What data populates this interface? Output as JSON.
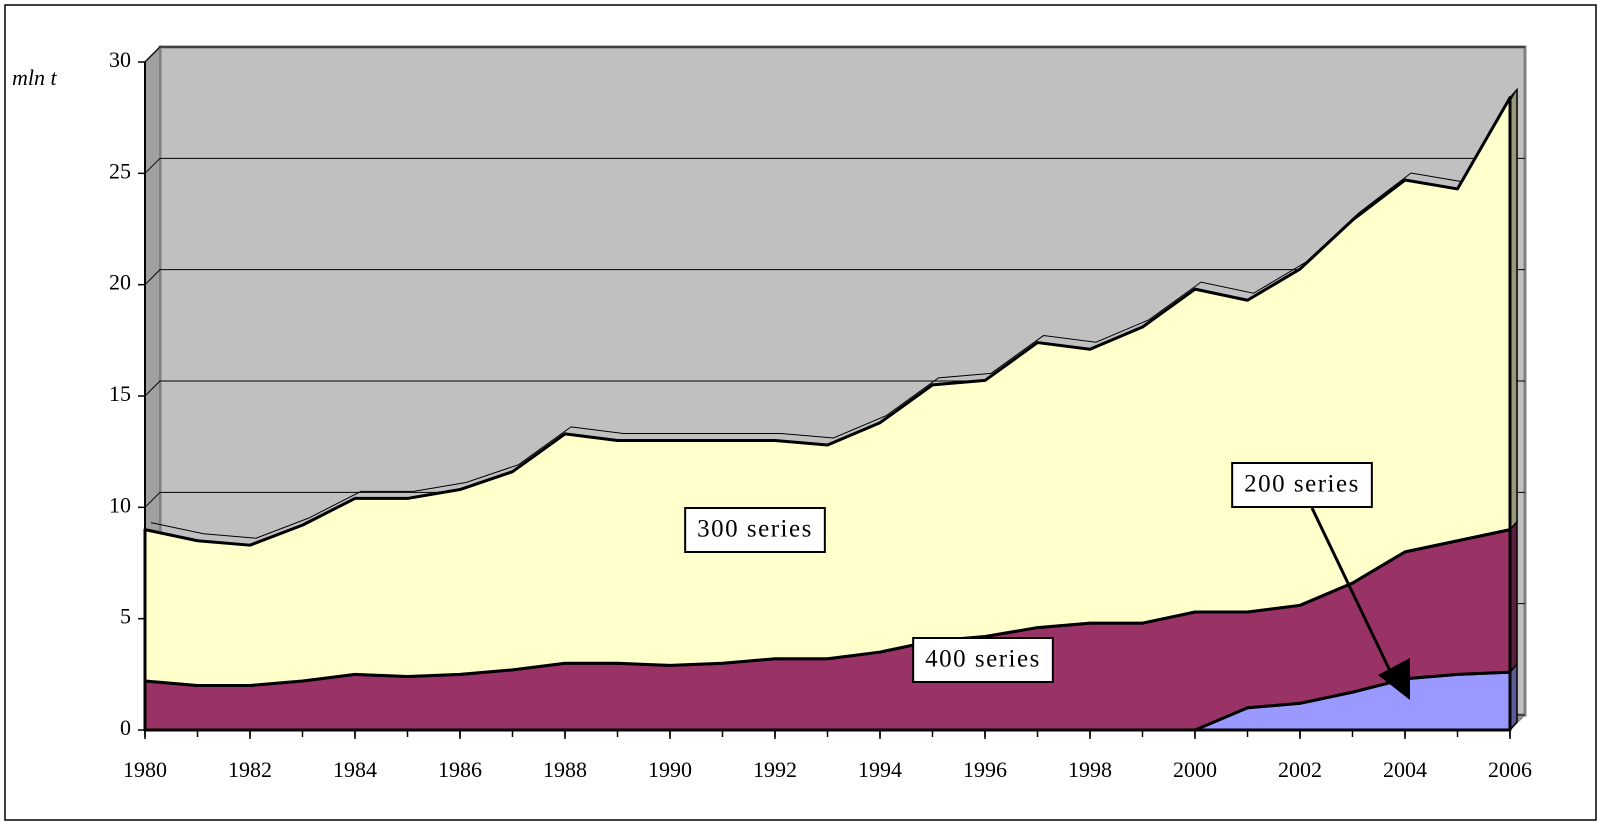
{
  "chart_data": {
    "type": "stacked_area",
    "y_axis_label": "mln t",
    "x": [
      1980,
      1981,
      1982,
      1983,
      1984,
      1985,
      1986,
      1987,
      1988,
      1989,
      1990,
      1991,
      1992,
      1993,
      1994,
      1995,
      1996,
      1997,
      1998,
      1999,
      2000,
      2001,
      2002,
      2003,
      2004,
      2005,
      2006
    ],
    "series": [
      {
        "name": "200 series",
        "color": "#9999ff",
        "values": [
          0,
          0,
          0,
          0,
          0,
          0,
          0,
          0,
          0,
          0,
          0,
          0,
          0,
          0,
          0,
          0,
          0,
          0,
          0,
          0,
          0,
          1.0,
          1.2,
          1.7,
          2.3,
          2.5,
          2.6
        ]
      },
      {
        "name": "400 series",
        "color": "#993366",
        "values": [
          2.2,
          2.0,
          2.0,
          2.2,
          2.5,
          2.4,
          2.5,
          2.7,
          3.0,
          3.0,
          2.9,
          3.0,
          3.2,
          3.2,
          3.5,
          4.0,
          4.2,
          4.6,
          4.8,
          4.8,
          5.3,
          4.3,
          4.4,
          4.9,
          5.7,
          6.0,
          6.4
        ]
      },
      {
        "name": "300 series",
        "color": "#ffffcc",
        "values": [
          6.8,
          6.5,
          6.3,
          7.0,
          7.9,
          8.0,
          8.3,
          8.9,
          10.3,
          10.0,
          10.1,
          10.0,
          9.8,
          9.6,
          10.3,
          11.5,
          11.5,
          12.8,
          12.3,
          13.3,
          14.5,
          14.0,
          15.1,
          16.3,
          16.7,
          15.8,
          19.4
        ]
      }
    ],
    "xlim": [
      1980,
      2006
    ],
    "xticks": [
      1980,
      1982,
      1984,
      1986,
      1988,
      1990,
      1992,
      1994,
      1996,
      1998,
      2000,
      2002,
      2004,
      2006
    ],
    "ylim": [
      0,
      30
    ],
    "yticks": [
      0,
      5,
      10,
      15,
      20,
      25,
      30
    ],
    "grid": true,
    "wall_color": "#c0c0c0"
  }
}
